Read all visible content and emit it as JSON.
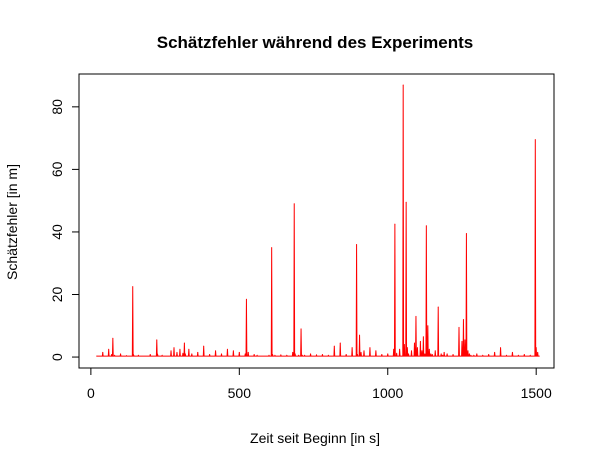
{
  "chart_data": {
    "type": "line",
    "title": "Schätzfehler während des Experiments",
    "xlabel": "Zeit seit Beginn [in s]",
    "ylabel": "Schätzfehler [in m]",
    "xlim": [
      -40,
      1560
    ],
    "ylim": [
      -3.5,
      90.5
    ],
    "x_ticks": [
      0,
      500,
      1000,
      1500
    ],
    "y_ticks": [
      0,
      20,
      40,
      60,
      80
    ],
    "grid": false,
    "line_color": "#ff0000",
    "series": [
      {
        "x": [
          20,
          40,
          60,
          70,
          74,
          80,
          100,
          120,
          141,
          144,
          160,
          200,
          222,
          225,
          240,
          270,
          280,
          290,
          300,
          310,
          315,
          318,
          330,
          340,
          360,
          380,
          400,
          420,
          440,
          460,
          480,
          500,
          520,
          524,
          530,
          550,
          560,
          600,
          609,
          612,
          620,
          640,
          660,
          680,
          685,
          688,
          700,
          708,
          712,
          720,
          740,
          760,
          780,
          800,
          820,
          840,
          860,
          880,
          895,
          898,
          905,
          910,
          920,
          940,
          960,
          980,
          1000,
          1020,
          1024,
          1030,
          1040,
          1052,
          1056,
          1062,
          1066,
          1070,
          1080,
          1090,
          1095,
          1100,
          1110,
          1115,
          1120,
          1125,
          1130,
          1135,
          1140,
          1145,
          1150,
          1160,
          1170,
          1180,
          1185,
          1190,
          1200,
          1220,
          1240,
          1250,
          1255,
          1260,
          1265,
          1270,
          1275,
          1280,
          1290,
          1300,
          1320,
          1340,
          1360,
          1380,
          1400,
          1420,
          1440,
          1460,
          1480,
          1497,
          1500,
          1505,
          1510
        ],
        "y": [
          0.3,
          1.5,
          2.5,
          0.8,
          6.0,
          0.5,
          1.0,
          0.4,
          22.5,
          0.6,
          0.5,
          0.8,
          5.5,
          0.7,
          0.5,
          2.0,
          3.0,
          1.5,
          2.5,
          1.2,
          4.5,
          1.0,
          2.5,
          1.0,
          1.5,
          3.5,
          0.8,
          2.0,
          1.0,
          2.5,
          2.0,
          1.5,
          1.0,
          18.5,
          1.5,
          0.8,
          0.5,
          0.5,
          35.0,
          0.8,
          0.5,
          0.6,
          0.5,
          1.5,
          49.0,
          1.0,
          0.5,
          9.0,
          0.5,
          0.5,
          1.0,
          0.6,
          0.8,
          0.5,
          3.5,
          4.5,
          0.8,
          3.0,
          36.0,
          0.8,
          7.0,
          1.5,
          2.0,
          3.0,
          2.0,
          0.8,
          1.0,
          2.5,
          42.5,
          1.2,
          2.5,
          87.0,
          4.0,
          49.5,
          3.0,
          1.0,
          2.0,
          4.5,
          13.0,
          3.0,
          5.0,
          2.0,
          6.5,
          1.0,
          42.0,
          10.0,
          2.5,
          1.0,
          0.8,
          2.0,
          16.0,
          1.0,
          0.5,
          1.5,
          1.0,
          0.8,
          9.5,
          5.0,
          12.0,
          5.5,
          39.5,
          2.0,
          1.0,
          0.5,
          0.5,
          1.0,
          0.5,
          0.8,
          1.5,
          3.0,
          0.5,
          1.5,
          0.5,
          0.8,
          0.5,
          69.5,
          3.0,
          1.5,
          0.3
        ]
      }
    ]
  }
}
